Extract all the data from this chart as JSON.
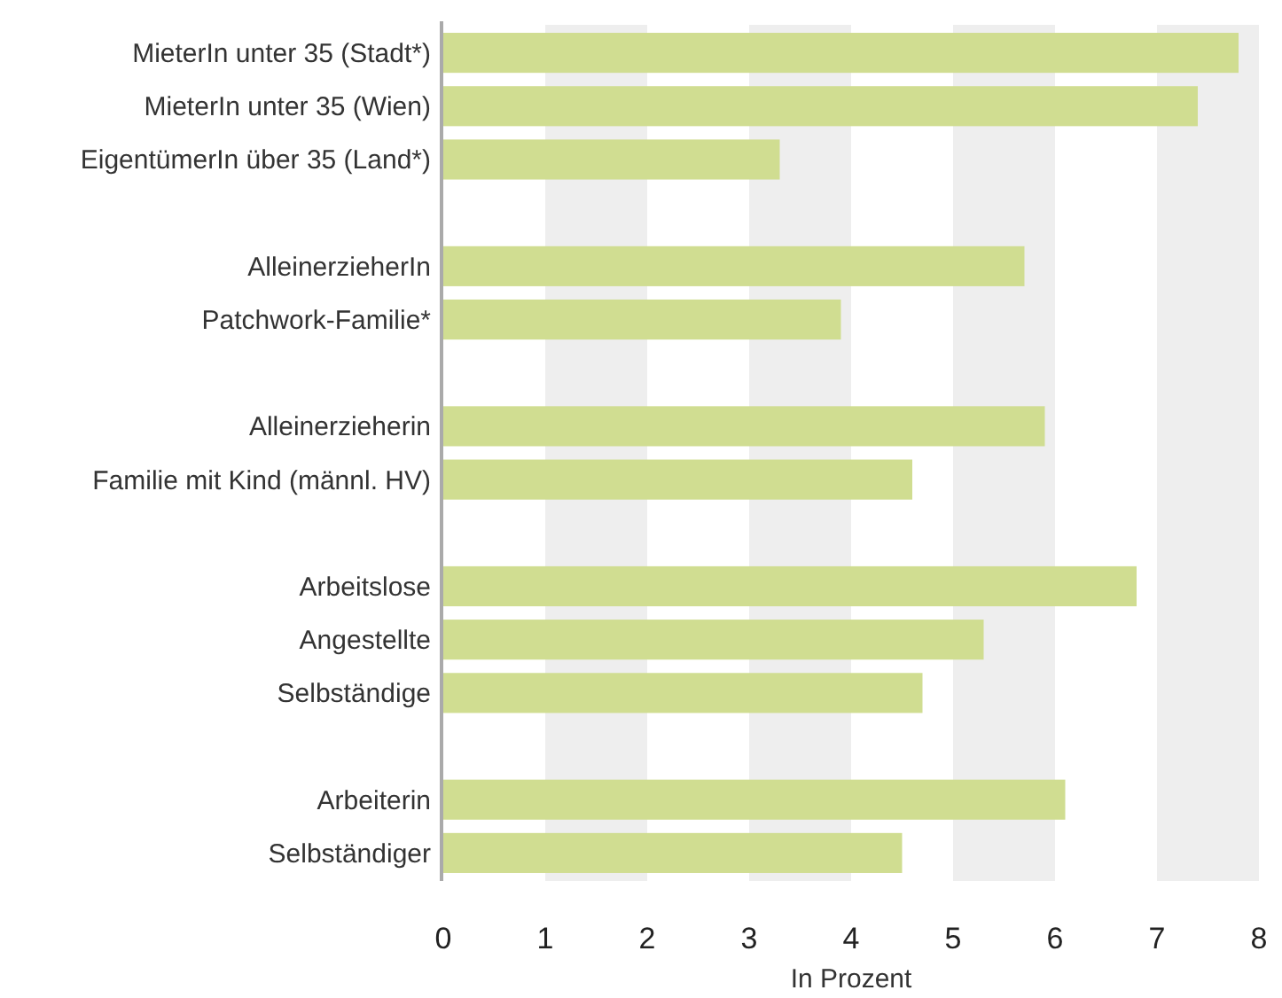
{
  "chart_data": {
    "type": "bar",
    "orientation": "horizontal",
    "xlabel": "In Prozent",
    "categories": [
      "MieterIn unter 35 (Stadt*)",
      "MieterIn unter 35 (Wien)",
      "EigentümerIn über 35 (Land*)",
      null,
      "AlleinerzieherIn",
      "Patchwork-Familie*",
      null,
      "Alleinerzieherin",
      "Familie mit Kind (männl. HV)",
      null,
      "Arbeitslose",
      "Angestellte",
      "Selbständige",
      null,
      "Arbeiterin",
      "Selbständiger"
    ],
    "values": [
      7.8,
      7.4,
      3.3,
      null,
      5.7,
      3.9,
      null,
      5.9,
      4.6,
      null,
      6.8,
      5.3,
      4.7,
      null,
      6.1,
      4.5
    ],
    "color": "#d0dd91",
    "xlim": [
      0,
      8
    ],
    "xticks": [
      0,
      1,
      2,
      3,
      4,
      5,
      6,
      7,
      8
    ],
    "bands": [
      {
        "axis": "x",
        "from": 1,
        "to": 2,
        "color": "#eeeeee"
      },
      {
        "axis": "x",
        "from": 3,
        "to": 4,
        "color": "#eeeeee"
      },
      {
        "axis": "x",
        "from": 5,
        "to": 6,
        "color": "#eeeeee"
      },
      {
        "axis": "x",
        "from": 7,
        "to": 8,
        "color": "#eeeeee"
      }
    ],
    "grid": false
  }
}
